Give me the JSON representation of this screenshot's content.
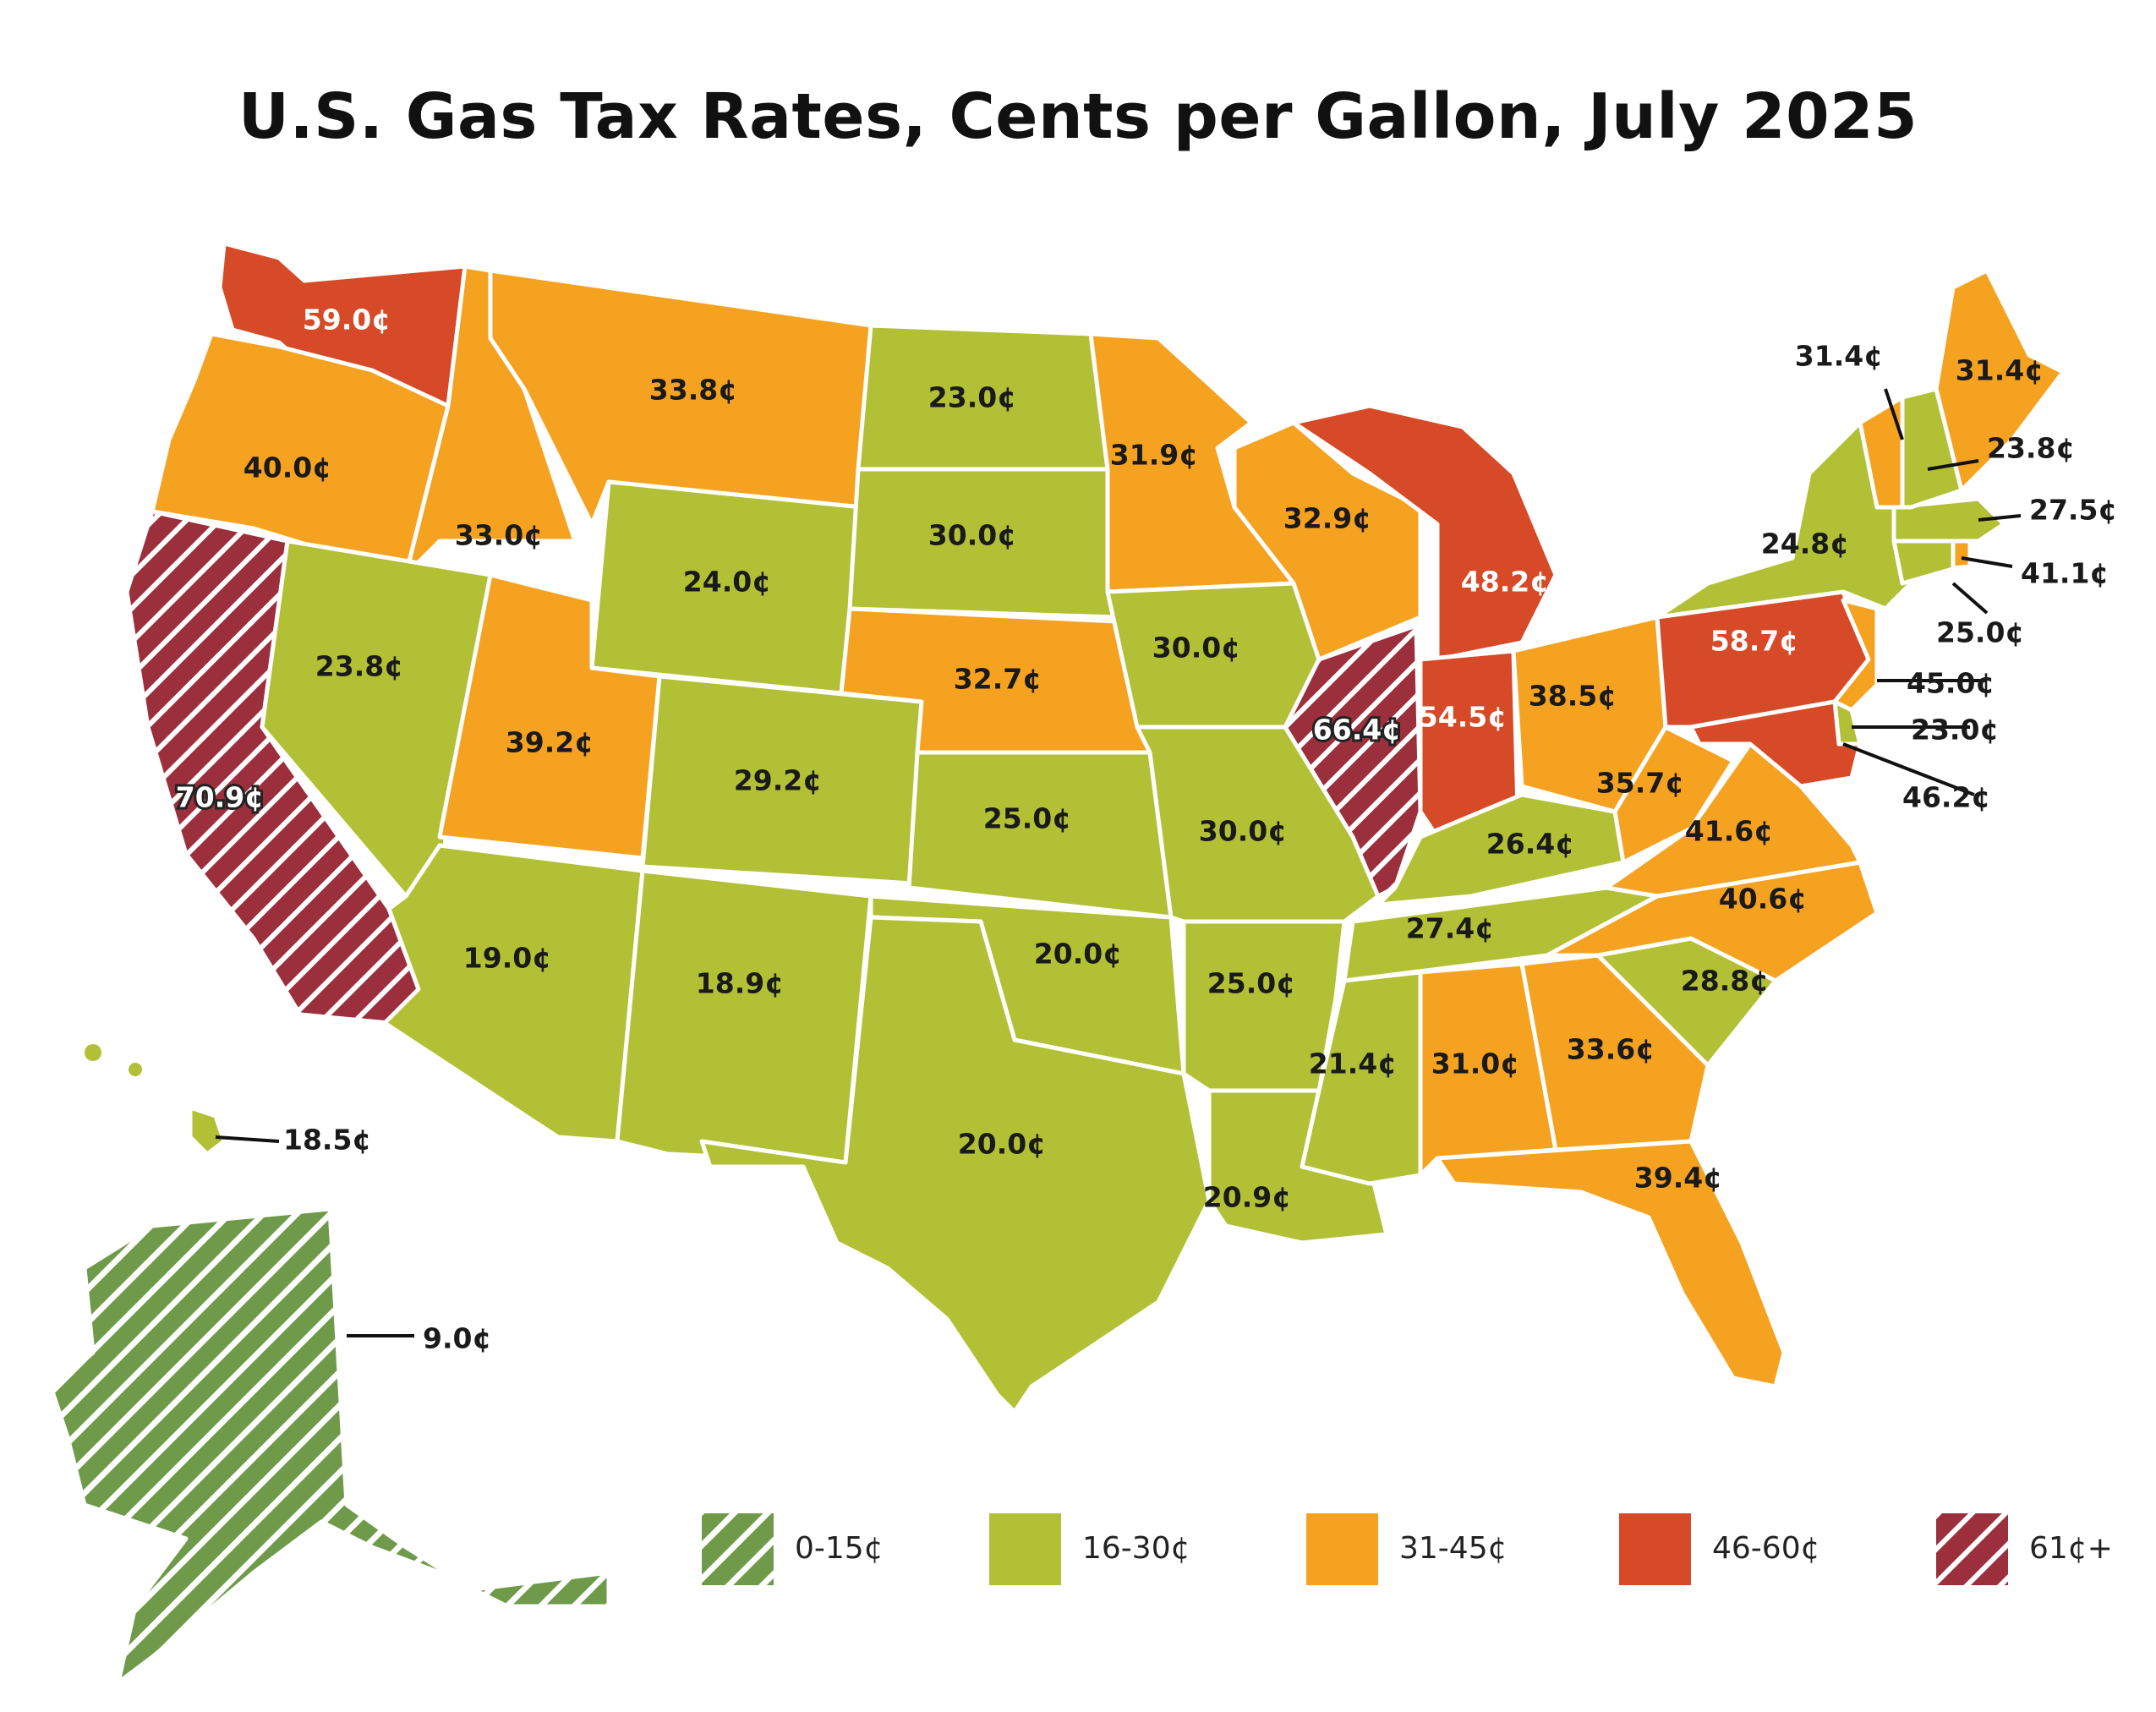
{
  "title": "U.S. Gas Tax Rates, Cents per Gallon, July 2025",
  "colors": {
    "bin_0_15": "#6f9a4a",
    "bin_16_30": "#b2c035",
    "bin_31_45": "#f6a221",
    "bin_46_60": "#d64a28",
    "bin_61_plus": "#9b2f3c"
  },
  "legend": [
    {
      "label": "0-15¢",
      "bin": "bin_0_15",
      "hatched": true
    },
    {
      "label": "16-30¢",
      "bin": "bin_16_30",
      "hatched": false
    },
    {
      "label": "31-45¢",
      "bin": "bin_31_45",
      "hatched": false
    },
    {
      "label": "46-60¢",
      "bin": "bin_46_60",
      "hatched": false
    },
    {
      "label": "61¢+",
      "bin": "bin_61_plus",
      "hatched": true
    }
  ],
  "states": {
    "WA": "59.0¢",
    "OR": "40.0¢",
    "CA": "70.9¢",
    "ID": "33.0¢",
    "NV": "23.8¢",
    "MT": "33.8¢",
    "WY": "24.0¢",
    "UT": "39.2¢",
    "AZ": "19.0¢",
    "CO": "29.2¢",
    "NM": "18.9¢",
    "ND": "23.0¢",
    "SD": "30.0¢",
    "NE": "32.7¢",
    "KS": "25.0¢",
    "OK": "20.0¢",
    "TX": "20.0¢",
    "MN": "31.9¢",
    "IA": "30.0¢",
    "MO": "30.0¢",
    "AR": "25.0¢",
    "LA": "20.9¢",
    "WI": "32.9¢",
    "IL": "66.4¢",
    "MI": "48.2¢",
    "IN": "54.5¢",
    "OH": "38.5¢",
    "KY": "26.4¢",
    "TN": "27.4¢",
    "MS": "21.4¢",
    "AL": "31.0¢",
    "GA": "33.6¢",
    "FL": "39.4¢",
    "SC": "28.8¢",
    "NC": "40.6¢",
    "VA": "41.6¢",
    "WV": "35.7¢",
    "PA": "58.7¢",
    "NY": "24.8¢",
    "ME": "31.4¢",
    "VT": "31.4¢",
    "NH": "23.8¢",
    "MA": "27.5¢",
    "RI": "41.1¢",
    "CT": "25.0¢",
    "NJ": "45.0¢",
    "DE": "23.0¢",
    "MD": "46.2¢",
    "HI": "18.5¢",
    "AK": "9.0¢"
  }
}
